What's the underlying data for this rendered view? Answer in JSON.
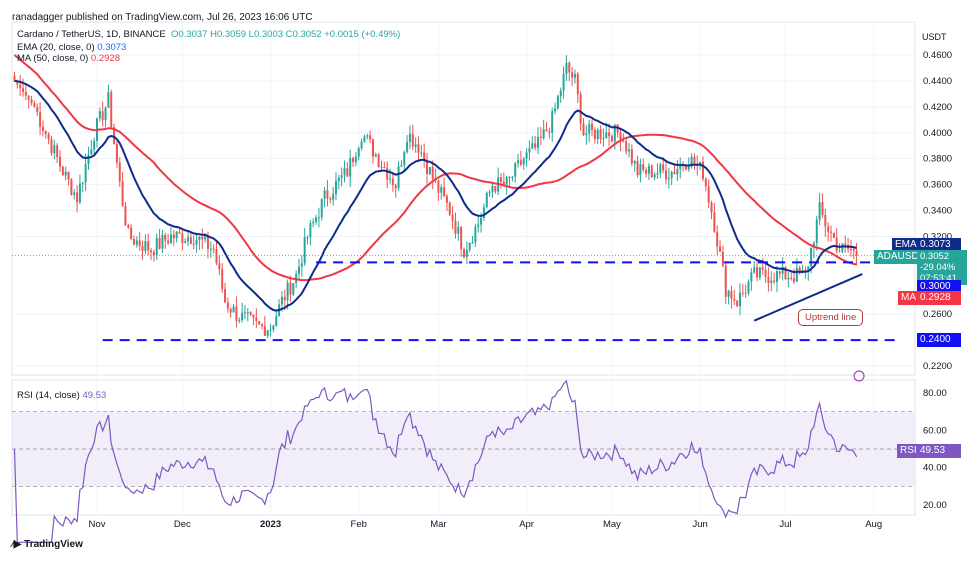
{
  "header": {
    "published": "ranadagger published on TradingView.com, Jul 26, 2023 16:06 UTC"
  },
  "legend": {
    "symbol": "Cardano / TetherUS, 1D, BINANCE",
    "o": "O0.3037",
    "h": "H0.3059",
    "l": "L0.3003",
    "c": "C0.3052",
    "change": "+0.0015 (+0.49%)",
    "ema": "EMA (20, close, 0)",
    "ema_val": "0.3073",
    "ma": "MA (50, close, 0)",
    "ma_val": "0.2928",
    "rsi": "RSI (14, close)",
    "rsi_val": "49.53"
  },
  "axis": {
    "currency": "USDT"
  },
  "price_labels": {
    "ema_tag": "EMA",
    "ema": "0.3073",
    "sym_tag": "ADAUSDT",
    "price": "0.3052",
    "pct": "-29.04%",
    "countdown": "07:53:41",
    "support1": "0.3000",
    "ma_tag": "MA",
    "ma": "0.2928",
    "support2": "0.2400",
    "rsi_tag": "RSI",
    "rsi": "49.53"
  },
  "annotation": "Uptrend line",
  "footer": {
    "brand": "TradingView"
  },
  "colors": {
    "up": "#26a69a",
    "down": "#ef5350",
    "ema": "#0d2c8c",
    "ma": "#f23645",
    "support": "#1010f0",
    "rsi": "#7e57c2"
  },
  "chart_data": {
    "type": "candlestick",
    "price_range": [
      0.21,
      0.47
    ],
    "y_ticks": [
      "0.4600",
      "0.4400",
      "0.4200",
      "0.4000",
      "0.3800",
      "0.3600",
      "0.3400",
      "0.3200",
      "0.2600",
      "0.2200"
    ],
    "x_ticks": [
      "Nov",
      "Dec",
      "2023",
      "Feb",
      "Mar",
      "Apr",
      "May",
      "Jun",
      "Jul",
      "Aug"
    ],
    "rsi_ticks": [
      "80.00",
      "60.00",
      "40.00",
      "20.00"
    ],
    "rsi_range": [
      15,
      85
    ],
    "close_path": [
      [
        "2022-10-03",
        0.44
      ],
      [
        "2022-10-10",
        0.42
      ],
      [
        "2022-10-20",
        0.37
      ],
      [
        "2022-10-25",
        0.35
      ],
      [
        "2022-10-31",
        0.4
      ],
      [
        "2022-11-05",
        0.425
      ],
      [
        "2022-11-09",
        0.36
      ],
      [
        "2022-11-12",
        0.32
      ],
      [
        "2022-11-20",
        0.31
      ],
      [
        "2022-11-27",
        0.32
      ],
      [
        "2022-12-05",
        0.32
      ],
      [
        "2022-12-12",
        0.31
      ],
      [
        "2022-12-16",
        0.27
      ],
      [
        "2022-12-20",
        0.26
      ],
      [
        "2022-12-28",
        0.25
      ],
      [
        "2023-01-01",
        0.25
      ],
      [
        "2023-01-05",
        0.27
      ],
      [
        "2023-01-10",
        0.29
      ],
      [
        "2023-01-14",
        0.32
      ],
      [
        "2023-01-20",
        0.35
      ],
      [
        "2023-01-28",
        0.37
      ],
      [
        "2023-02-02",
        0.4
      ],
      [
        "2023-02-08",
        0.38
      ],
      [
        "2023-02-14",
        0.36
      ],
      [
        "2023-02-18",
        0.4
      ],
      [
        "2023-02-22",
        0.39
      ],
      [
        "2023-02-28",
        0.36
      ],
      [
        "2023-03-05",
        0.34
      ],
      [
        "2023-03-10",
        0.31
      ],
      [
        "2023-03-15",
        0.33
      ],
      [
        "2023-03-20",
        0.36
      ],
      [
        "2023-03-25",
        0.36
      ],
      [
        "2023-03-31",
        0.38
      ],
      [
        "2023-04-05",
        0.39
      ],
      [
        "2023-04-10",
        0.41
      ],
      [
        "2023-04-15",
        0.45
      ],
      [
        "2023-04-18",
        0.44
      ],
      [
        "2023-04-21",
        0.4
      ],
      [
        "2023-04-28",
        0.4
      ],
      [
        "2023-05-04",
        0.4
      ],
      [
        "2023-05-10",
        0.37
      ],
      [
        "2023-05-15",
        0.37
      ],
      [
        "2023-05-22",
        0.37
      ],
      [
        "2023-05-28",
        0.38
      ],
      [
        "2023-06-02",
        0.37
      ],
      [
        "2023-06-06",
        0.33
      ],
      [
        "2023-06-10",
        0.28
      ],
      [
        "2023-06-14",
        0.27
      ],
      [
        "2023-06-20",
        0.29
      ],
      [
        "2023-06-25",
        0.29
      ],
      [
        "2023-07-01",
        0.29
      ],
      [
        "2023-07-08",
        0.29
      ],
      [
        "2023-07-13",
        0.34
      ],
      [
        "2023-07-15",
        0.33
      ],
      [
        "2023-07-20",
        0.31
      ],
      [
        "2023-07-24",
        0.31
      ],
      [
        "2023-07-26",
        0.3052
      ]
    ],
    "support_levels": [
      {
        "price": 0.3,
        "from": "2023-01-17",
        "to": "2023-07-31"
      },
      {
        "price": 0.24,
        "from": "2022-11-03",
        "to": "2023-08-10"
      }
    ],
    "uptrend_line": {
      "from": [
        "2023-06-20",
        0.255
      ],
      "to": [
        "2023-07-28",
        0.291
      ]
    }
  }
}
